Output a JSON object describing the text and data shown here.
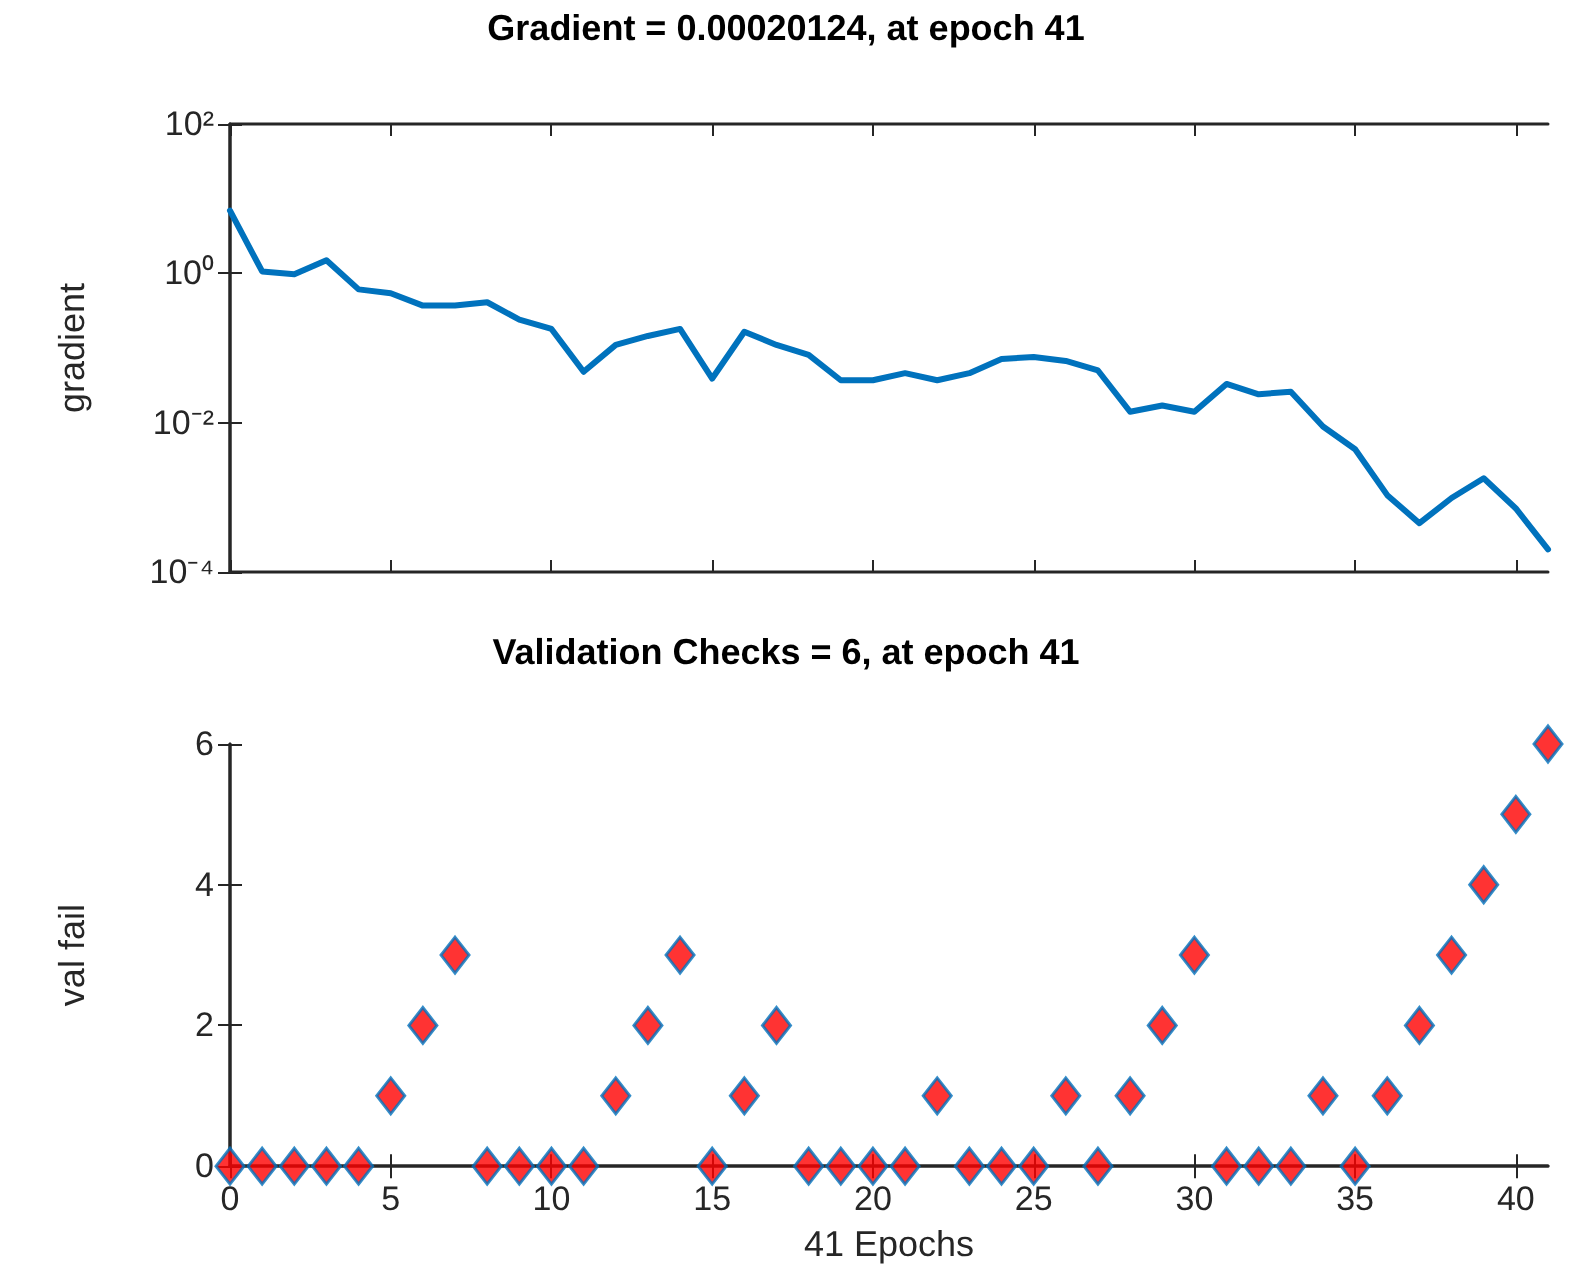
{
  "chart_data": [
    {
      "type": "line",
      "title": "Gradient = 0.00020124, at epoch 41",
      "ylabel": "gradient",
      "x": [
        0,
        1,
        2,
        3,
        4,
        5,
        6,
        7,
        8,
        9,
        10,
        11,
        12,
        13,
        14,
        15,
        16,
        17,
        18,
        19,
        20,
        21,
        22,
        23,
        24,
        25,
        26,
        27,
        28,
        29,
        30,
        31,
        32,
        33,
        34,
        35,
        36,
        37,
        38,
        39,
        40,
        41
      ],
      "series": [
        {
          "color": "#0072bd",
          "values": [
            6.9,
            1.06,
            0.97,
            1.5,
            0.61,
            0.54,
            0.37,
            0.37,
            0.41,
            0.24,
            0.18,
            0.048,
            0.11,
            0.145,
            0.18,
            0.039,
            0.165,
            0.11,
            0.081,
            0.037,
            0.037,
            0.046,
            0.037,
            0.046,
            0.071,
            0.076,
            0.067,
            0.05,
            0.014,
            0.017,
            0.014,
            0.033,
            0.024,
            0.026,
            0.0089,
            0.0044,
            0.00107,
            0.00045,
            0.00098,
            0.0018,
            0.00071,
            0.00020124
          ]
        }
      ],
      "xlim": [
        0,
        41
      ],
      "xticks": [
        0,
        5,
        10,
        15,
        20,
        25,
        30,
        35,
        40
      ],
      "ylim": [
        0.0001,
        100
      ],
      "yticks": [
        {
          "value": 0.0001,
          "label": "10⁻⁴"
        },
        {
          "value": 0.01,
          "label": "10⁻²"
        },
        {
          "value": 1,
          "label": "10⁰"
        },
        {
          "value": 100,
          "label": "10²"
        }
      ],
      "log": "y",
      "grid": false,
      "marker": "none",
      "line_style": "solid",
      "tick_labels": "y"
    },
    {
      "type": "scatter",
      "title": "Validation Checks = 6, at epoch 41",
      "ylabel": "val fail",
      "xlabel": "41 Epochs",
      "x": [
        0,
        1,
        2,
        3,
        4,
        5,
        6,
        7,
        8,
        9,
        10,
        11,
        12,
        13,
        14,
        15,
        16,
        17,
        18,
        19,
        20,
        21,
        22,
        23,
        24,
        25,
        26,
        27,
        28,
        29,
        30,
        31,
        32,
        33,
        34,
        35,
        36,
        37,
        38,
        39,
        40,
        41
      ],
      "series": [
        {
          "color": "#ff0000",
          "values": [
            0,
            0,
            0,
            0,
            0,
            1,
            2,
            3,
            0,
            0,
            0,
            0,
            1,
            2,
            3,
            0,
            1,
            2,
            0,
            0,
            0,
            0,
            1,
            0,
            0,
            0,
            1,
            0,
            1,
            2,
            3,
            0,
            0,
            0,
            1,
            0,
            1,
            2,
            3,
            4,
            5,
            6
          ]
        }
      ],
      "xlim": [
        0,
        41
      ],
      "xticks": [
        0,
        5,
        10,
        15,
        20,
        25,
        30,
        35,
        40
      ],
      "ylim": [
        0,
        6
      ],
      "yticks": [
        0,
        2,
        4,
        6
      ],
      "grid": false,
      "marker": "diamond"
    }
  ]
}
